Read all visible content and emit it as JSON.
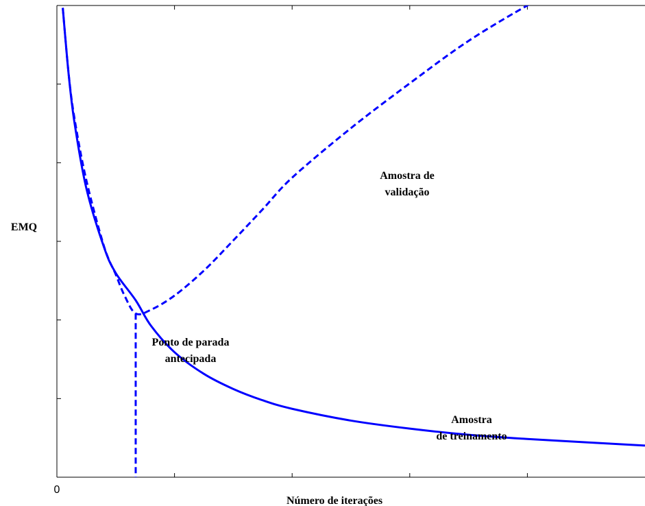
{
  "chart_data": {
    "type": "line",
    "title": "",
    "xlabel": "Número de iterações",
    "ylabel": "EMQ",
    "x_tick_labels": [
      "0"
    ],
    "xlim": [
      0,
      100
    ],
    "ylim": [
      0,
      100
    ],
    "grid": false,
    "legend": "none",
    "series": [
      {
        "style": "solid",
        "color": "#0000ff",
        "x": [
          1,
          2,
          3,
          5,
          8,
          10,
          13.4,
          16,
          20,
          25,
          30,
          35,
          40,
          50,
          60,
          70,
          80,
          90,
          100
        ],
        "y": [
          99.5,
          85.4,
          75.1,
          61.3,
          48.8,
          43.3,
          37.5,
          32.1,
          26.5,
          21.9,
          18.7,
          16.3,
          14.5,
          12.0,
          10.3,
          9.0,
          8.1,
          7.4,
          6.7
        ]
      },
      {
        "style": "dashed",
        "color": "#0000ff",
        "x": [
          1,
          2,
          3,
          5,
          8,
          10,
          11.5,
          13.4,
          16,
          20,
          25,
          30,
          35,
          40,
          50,
          60,
          70,
          80,
          81.5
        ],
        "y": [
          99.5,
          85.5,
          76.0,
          63.0,
          49.0,
          43.0,
          38.5,
          34.7,
          35.5,
          38.5,
          43.8,
          50.2,
          56.8,
          63.5,
          74.0,
          83.5,
          92.5,
          100,
          100.5
        ]
      }
    ],
    "annotations": [
      {
        "text_lines": [
          "Amostra de",
          "validação"
        ]
      },
      {
        "text_lines": [
          "Ponto de parada",
          "antecipada"
        ]
      },
      {
        "text_lines": [
          "Amostra",
          "de treinamento"
        ]
      }
    ],
    "early_stopping_x": 13.4
  }
}
